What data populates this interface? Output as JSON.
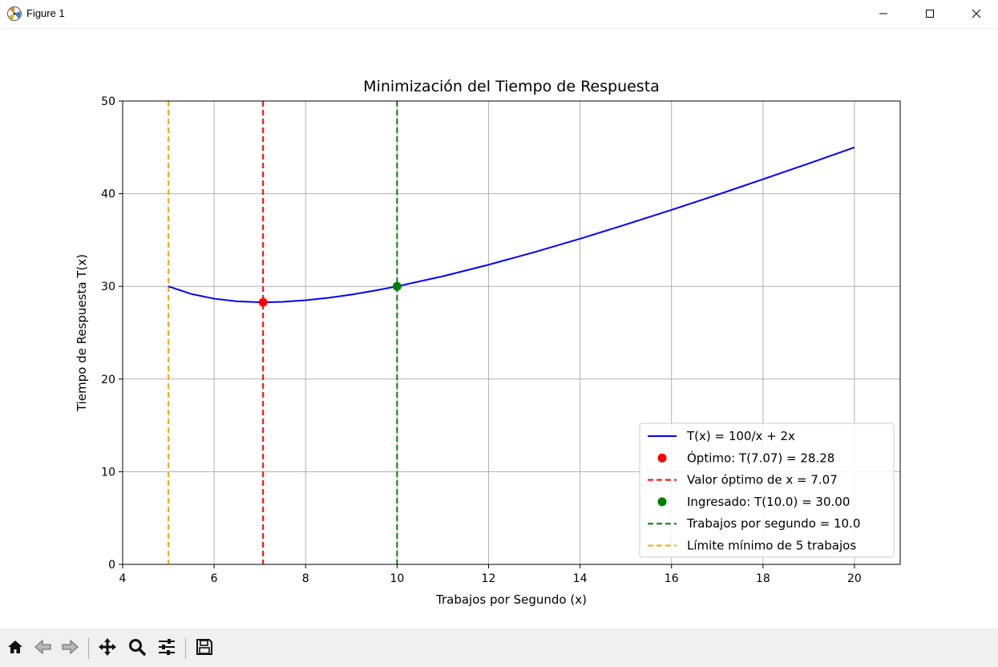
{
  "window": {
    "title": "Figure 1",
    "icons": {
      "app": "matplotlib-app-icon",
      "minimize": "minimize-icon",
      "maximize": "maximize-icon",
      "close": "close-icon"
    }
  },
  "toolbar": {
    "buttons": [
      {
        "name": "home",
        "icon": "home-icon"
      },
      {
        "name": "back",
        "icon": "arrow-left-icon"
      },
      {
        "name": "forward",
        "icon": "arrow-right-icon"
      },
      {
        "name": "pan",
        "icon": "move-icon"
      },
      {
        "name": "zoom",
        "icon": "magnifier-icon"
      },
      {
        "name": "subplots",
        "icon": "sliders-icon"
      },
      {
        "name": "save",
        "icon": "floppy-disk-icon"
      }
    ]
  },
  "chart_data": {
    "type": "line",
    "title": "Minimización del Tiempo de Respuesta",
    "xlabel": "Trabajos por Segundo (x)",
    "ylabel": "Tiempo de Respuesta T(x)",
    "xlim": [
      4,
      21
    ],
    "ylim": [
      0,
      50
    ],
    "xticks": [
      4,
      6,
      8,
      10,
      12,
      14,
      16,
      18,
      20
    ],
    "yticks": [
      0,
      10,
      20,
      30,
      40,
      50
    ],
    "grid": true,
    "legend_position": "lower-right",
    "curve": {
      "label": "T(x) = 100/x + 2x",
      "color": "#0000ff",
      "x": [
        5,
        5.5,
        6,
        6.5,
        7,
        7.071,
        7.5,
        8,
        8.5,
        9,
        9.5,
        10,
        11,
        12,
        13,
        14,
        15,
        16,
        17,
        18,
        19,
        20
      ],
      "y": [
        30.0,
        29.18,
        28.67,
        28.38,
        28.29,
        28.28,
        28.33,
        28.5,
        28.76,
        29.11,
        29.53,
        30.0,
        31.09,
        32.33,
        33.69,
        35.14,
        36.67,
        38.25,
        39.88,
        41.56,
        43.26,
        45.0
      ]
    },
    "points": [
      {
        "label": "Óptimo: T(7.07) = 28.28",
        "x": 7.07,
        "y": 28.28,
        "color": "#ff0000"
      },
      {
        "label": "Ingresado: T(10.0) = 30.00",
        "x": 10.0,
        "y": 30.0,
        "color": "#008000"
      }
    ],
    "vlines": [
      {
        "label": "Valor óptimo de x = 7.07",
        "x": 7.07,
        "color": "#ff0000"
      },
      {
        "label": "Trabajos por segundo = 10.0",
        "x": 10.0,
        "color": "#008000"
      },
      {
        "label": "Límite mínimo de 5 trabajos",
        "x": 5,
        "color": "#ffa500"
      }
    ],
    "legend": [
      {
        "kind": "line",
        "label": "T(x) = 100/x + 2x",
        "color": "#0000ff"
      },
      {
        "kind": "point",
        "label": "Óptimo: T(7.07) = 28.28",
        "color": "#ff0000"
      },
      {
        "kind": "dash",
        "label": "Valor óptimo de x = 7.07",
        "color": "#ff0000"
      },
      {
        "kind": "point",
        "label": "Ingresado: T(10.0) = 30.00",
        "color": "#008000"
      },
      {
        "kind": "dash",
        "label": "Trabajos por segundo = 10.0",
        "color": "#008000"
      },
      {
        "kind": "dash",
        "label": "Límite mínimo de 5 trabajos",
        "color": "#ffa500"
      }
    ]
  }
}
